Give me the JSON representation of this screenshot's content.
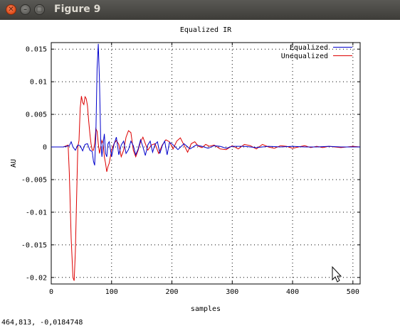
{
  "window": {
    "title": "Figure 9",
    "close_glyph": "✕",
    "minimize_glyph": "–",
    "maximize_glyph": "□"
  },
  "status": {
    "coords": "464,813, -0,0184748"
  },
  "chart_data": {
    "type": "line",
    "title": "Equalized IR",
    "xlabel": "samples",
    "ylabel": "AU",
    "xlim": [
      0,
      512
    ],
    "ylim": [
      -0.021,
      0.016
    ],
    "xticks": [
      0,
      100,
      200,
      300,
      400,
      500
    ],
    "xtick_labels": [
      "0",
      "100",
      "200",
      "300",
      "400",
      "500"
    ],
    "yticks": [
      0.015,
      0.01,
      0.005,
      0,
      -0.005,
      -0.01,
      -0.015,
      -0.02
    ],
    "ytick_labels": [
      "0.015",
      "0.01",
      "0.005",
      "0",
      "-0.005",
      "-0.01",
      "-0.015",
      "-0.02"
    ],
    "grid": true,
    "legend_position": "top-right",
    "series": [
      {
        "name": "Unequalized",
        "color": "#dd0000",
        "x": [
          0,
          10,
          20,
          28,
          30,
          33,
          36,
          38,
          40,
          42,
          44,
          46,
          48,
          50,
          52,
          54,
          56,
          58,
          60,
          62,
          64,
          66,
          68,
          70,
          72,
          74,
          76,
          78,
          80,
          82,
          84,
          86,
          88,
          90,
          92,
          94,
          96,
          100,
          104,
          108,
          112,
          116,
          120,
          124,
          128,
          132,
          136,
          140,
          144,
          148,
          152,
          156,
          160,
          166,
          172,
          178,
          184,
          190,
          196,
          202,
          208,
          214,
          220,
          226,
          232,
          238,
          244,
          250,
          256,
          262,
          270,
          280,
          290,
          300,
          310,
          320,
          330,
          340,
          350,
          360,
          370,
          380,
          390,
          400,
          410,
          420,
          430,
          440,
          450,
          460,
          470,
          480,
          490,
          500,
          512
        ],
        "y": [
          0,
          0,
          0,
          0.0003,
          -0.004,
          -0.014,
          -0.02,
          -0.0205,
          -0.016,
          -0.008,
          0,
          0.001,
          0.006,
          0.0078,
          0.0068,
          0.0065,
          0.0077,
          0.0074,
          0.0063,
          0.004,
          0.002,
          0.0005,
          -0.0005,
          -0.0005,
          0.0005,
          0.0028,
          0.0024,
          0.0005,
          -0.001,
          0,
          0.001,
          0.0005,
          -0.0015,
          -0.0025,
          -0.0038,
          -0.003,
          -0.0025,
          -0.0005,
          0.0005,
          0.001,
          0.0004,
          -0.0015,
          -0.0005,
          0.0015,
          0.0025,
          0.0022,
          -0.0005,
          -0.0015,
          -0.0005,
          0.0008,
          0.0015,
          0.0005,
          -0.0005,
          0.0003,
          0.0005,
          -0.001,
          0.0003,
          0.0011,
          0.0008,
          -0.0003,
          0.0009,
          0.0014,
          0.0003,
          -0.0008,
          0.0005,
          0.0008,
          0.0001,
          -0.0001,
          0.0004,
          0.0001,
          0.0003,
          -0.0003,
          -0.0004,
          0.0002,
          -0.0003,
          0.0004,
          0.0002,
          -0.0003,
          0.0004,
          0,
          -0.0002,
          0.0002,
          0.0001,
          -0.0002,
          0,
          0.0002,
          -0.0001,
          0.0001,
          -0.0001,
          0.0001,
          0,
          -0.0001,
          0,
          0.0001,
          0
        ]
      },
      {
        "name": "Equalized",
        "color": "#0000cc",
        "x": [
          0,
          10,
          20,
          30,
          33,
          36,
          40,
          44,
          48,
          52,
          56,
          60,
          64,
          68,
          70,
          72,
          74,
          76,
          78,
          80,
          82,
          84,
          86,
          88,
          90,
          92,
          94,
          96,
          100,
          104,
          108,
          112,
          116,
          120,
          124,
          128,
          132,
          136,
          140,
          144,
          148,
          152,
          156,
          160,
          164,
          168,
          172,
          176,
          180,
          184,
          188,
          192,
          196,
          200,
          210,
          220,
          230,
          240,
          250,
          260,
          270,
          280,
          290,
          300,
          320,
          340,
          360,
          380,
          400,
          420,
          440,
          460,
          480,
          500,
          512
        ],
        "y": [
          0,
          0,
          0,
          0.0002,
          0.0008,
          0,
          -0.0005,
          0.0003,
          0.0002,
          -0.0006,
          0.0004,
          0.0005,
          -0.0005,
          -0.0007,
          -0.0022,
          -0.0028,
          0.002,
          0.012,
          0.0158,
          0.01,
          0.001,
          -0.0015,
          0.0005,
          0.002,
          -0.001,
          -0.0015,
          0.0005,
          0.0008,
          -0.0015,
          0.0004,
          0.0015,
          -0.0012,
          0.0003,
          0.0009,
          -0.001,
          -0.0004,
          0.0009,
          0.0002,
          -0.0012,
          -0.0003,
          0.0011,
          0,
          -0.0013,
          0.0003,
          0.0009,
          -0.0008,
          0.0004,
          0.0008,
          -0.001,
          0.0002,
          0.0009,
          -0.0012,
          0.0007,
          0.0005,
          -0.0004,
          0.0005,
          -0.0003,
          0.0003,
          0.0001,
          -0.0002,
          0.0002,
          0.0001,
          -0.0002,
          0.0001,
          0.0001,
          -0.0001,
          0.0001,
          0,
          0.0001,
          0,
          0,
          0.0001,
          0,
          0,
          0
        ]
      }
    ]
  }
}
